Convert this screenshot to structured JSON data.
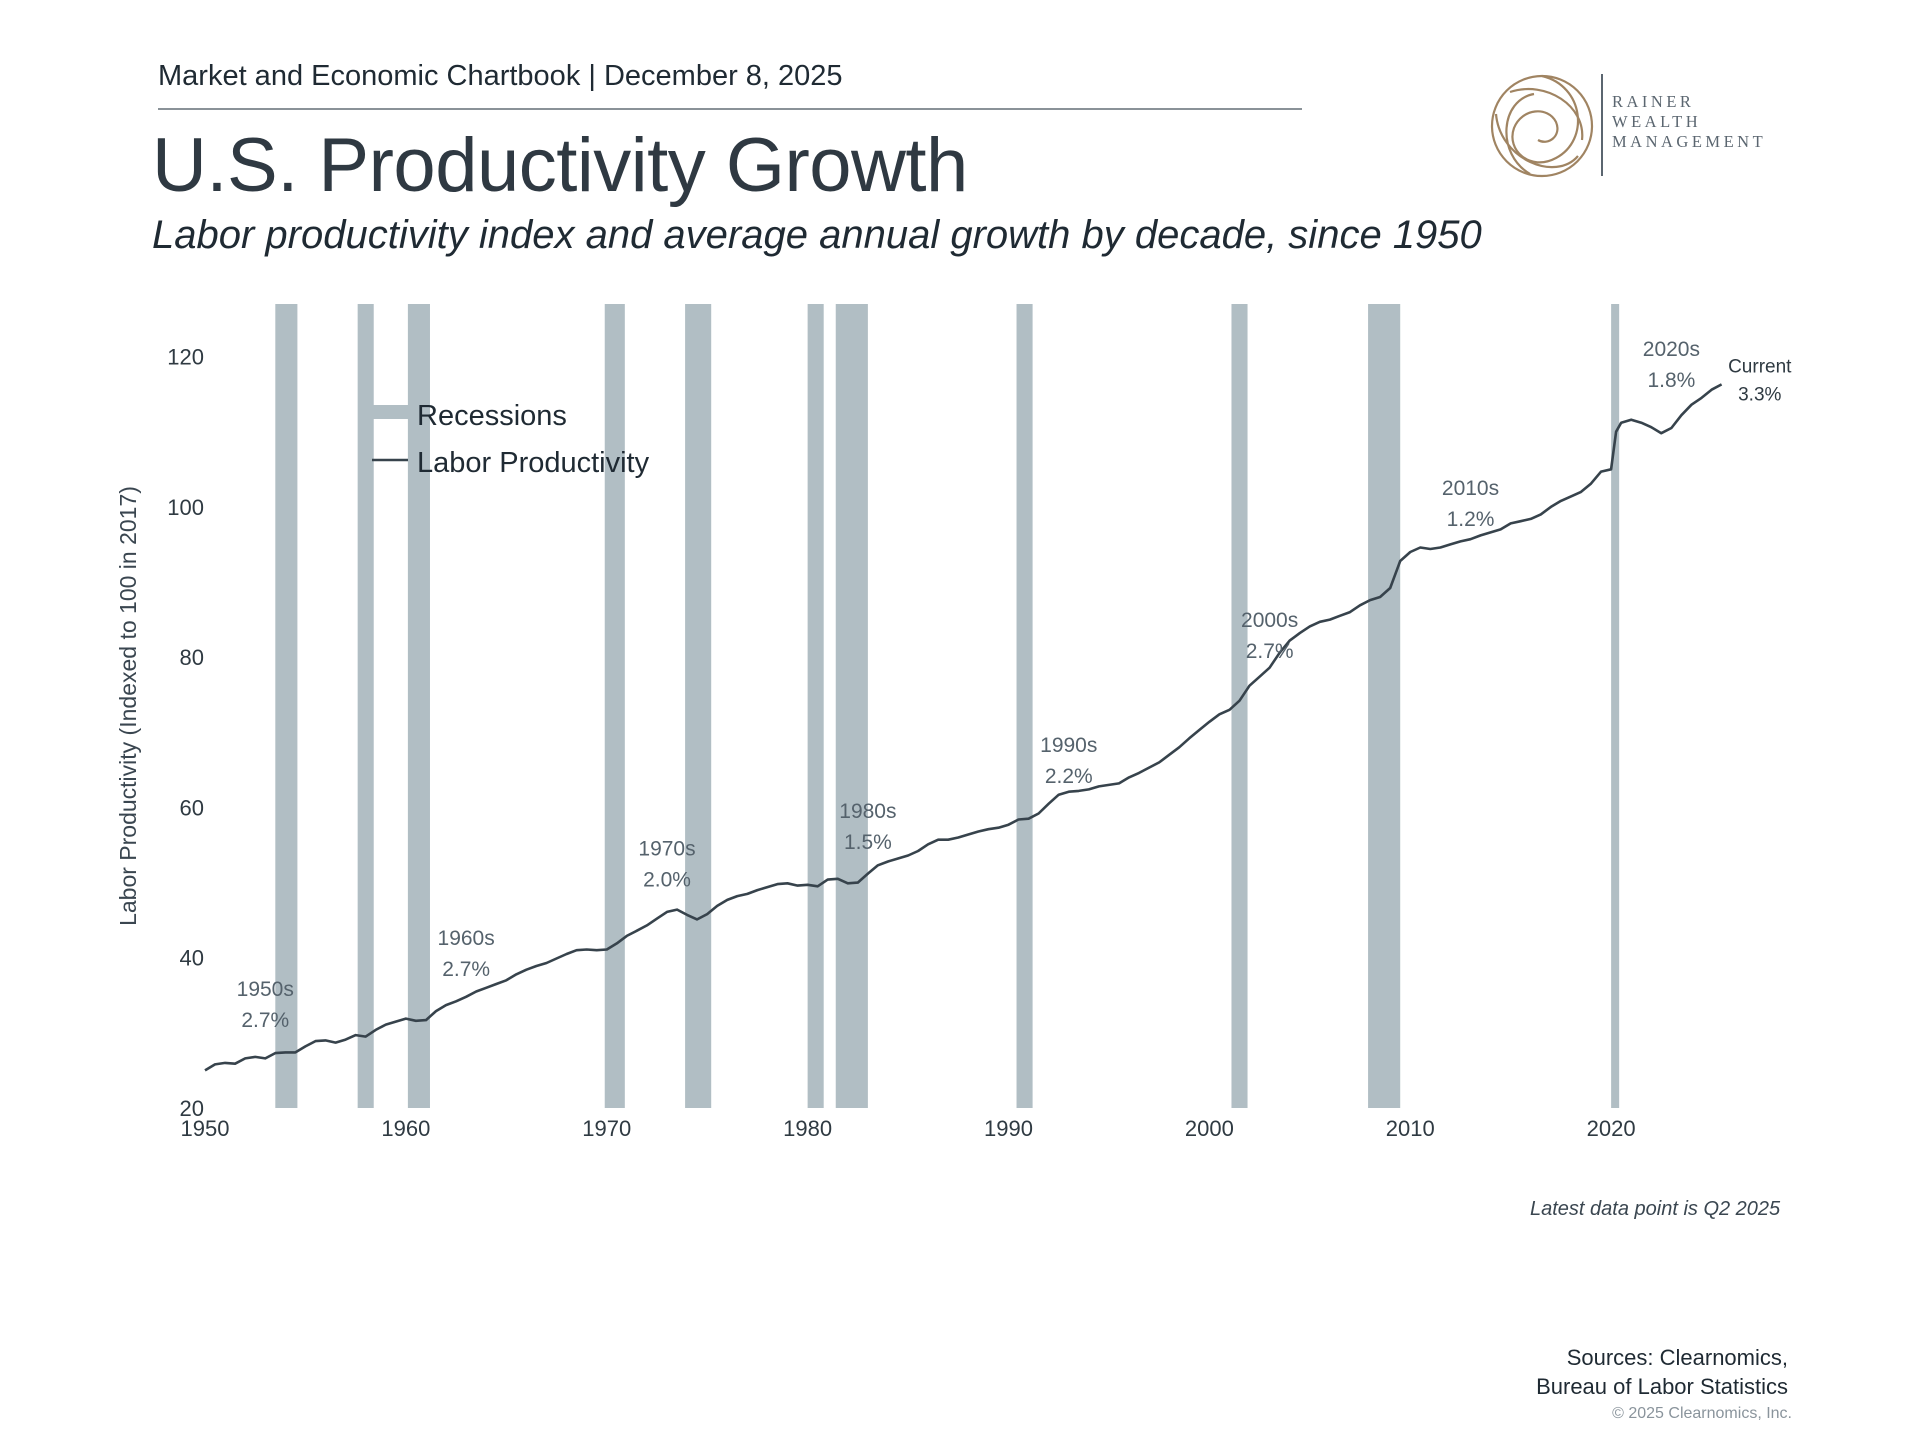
{
  "header": {
    "kicker": "Market and Economic Chartbook | December 8, 2025",
    "title": "U.S. Productivity Growth",
    "subtitle": "Labor productivity index and average annual growth by decade, since 1950"
  },
  "logo": {
    "line1": "RAINER",
    "line2": "WEALTH",
    "line3": "MANAGEMENT",
    "color": "#a08462"
  },
  "colors": {
    "recession": "#b1bec4",
    "line": "#37434c",
    "text": "#2f3a42",
    "annotation": "#55626c"
  },
  "chart_data": {
    "type": "line",
    "title": "U.S. Productivity Growth",
    "xlabel": "",
    "ylabel": "Labor Productivity (Indexed to 100 in 2017)",
    "xlim": [
      1950,
      2030
    ],
    "ylim": [
      20,
      127
    ],
    "xticks": [
      "1950",
      "1960",
      "1970",
      "1980",
      "1990",
      "2000",
      "2010",
      "2020"
    ],
    "yticks": [
      "20",
      "40",
      "60",
      "80",
      "100",
      "120"
    ],
    "grid": false,
    "legend": {
      "position": "top-left",
      "entries": [
        "Recessions",
        "Labor Productivity"
      ]
    },
    "recessions": [
      [
        1953.5,
        1954.6
      ],
      [
        1957.6,
        1958.4
      ],
      [
        1960.1,
        1961.2
      ],
      [
        1969.9,
        1970.9
      ],
      [
        1973.9,
        1975.2
      ],
      [
        1980.0,
        1980.8
      ],
      [
        1981.4,
        1983.0
      ],
      [
        1990.4,
        1991.2
      ],
      [
        2001.1,
        2001.9
      ],
      [
        2007.9,
        2009.5
      ],
      [
        2020.0,
        2020.4
      ]
    ],
    "series": [
      {
        "name": "Labor Productivity",
        "points": [
          [
            1950.0,
            25.0
          ],
          [
            1950.5,
            25.8
          ],
          [
            1951.0,
            26.0
          ],
          [
            1951.5,
            25.9
          ],
          [
            1952.0,
            26.6
          ],
          [
            1952.5,
            26.8
          ],
          [
            1953.0,
            26.6
          ],
          [
            1953.5,
            27.3
          ],
          [
            1954.0,
            27.4
          ],
          [
            1954.5,
            27.4
          ],
          [
            1955.0,
            28.2
          ],
          [
            1955.5,
            28.9
          ],
          [
            1956.0,
            29.0
          ],
          [
            1956.5,
            28.7
          ],
          [
            1957.0,
            29.1
          ],
          [
            1957.5,
            29.7
          ],
          [
            1958.0,
            29.5
          ],
          [
            1958.5,
            30.4
          ],
          [
            1959.0,
            31.1
          ],
          [
            1959.5,
            31.5
          ],
          [
            1960.0,
            31.9
          ],
          [
            1960.5,
            31.6
          ],
          [
            1961.0,
            31.7
          ],
          [
            1961.5,
            32.9
          ],
          [
            1962.0,
            33.7
          ],
          [
            1962.5,
            34.2
          ],
          [
            1963.0,
            34.8
          ],
          [
            1963.5,
            35.5
          ],
          [
            1964.0,
            36.0
          ],
          [
            1964.5,
            36.5
          ],
          [
            1965.0,
            37.0
          ],
          [
            1965.5,
            37.8
          ],
          [
            1966.0,
            38.4
          ],
          [
            1966.5,
            38.9
          ],
          [
            1967.0,
            39.3
          ],
          [
            1967.5,
            39.9
          ],
          [
            1968.0,
            40.5
          ],
          [
            1968.5,
            41.0
          ],
          [
            1969.0,
            41.1
          ],
          [
            1969.5,
            41.0
          ],
          [
            1970.0,
            41.1
          ],
          [
            1970.5,
            41.9
          ],
          [
            1971.0,
            42.9
          ],
          [
            1971.5,
            43.6
          ],
          [
            1972.0,
            44.3
          ],
          [
            1972.5,
            45.2
          ],
          [
            1973.0,
            46.1
          ],
          [
            1973.5,
            46.4
          ],
          [
            1974.0,
            45.7
          ],
          [
            1974.5,
            45.1
          ],
          [
            1975.0,
            45.8
          ],
          [
            1975.5,
            46.9
          ],
          [
            1976.0,
            47.7
          ],
          [
            1976.5,
            48.2
          ],
          [
            1977.0,
            48.5
          ],
          [
            1977.5,
            49.0
          ],
          [
            1978.0,
            49.4
          ],
          [
            1978.5,
            49.8
          ],
          [
            1979.0,
            49.9
          ],
          [
            1979.5,
            49.6
          ],
          [
            1980.0,
            49.7
          ],
          [
            1980.5,
            49.5
          ],
          [
            1981.0,
            50.4
          ],
          [
            1981.5,
            50.5
          ],
          [
            1982.0,
            49.9
          ],
          [
            1982.5,
            50.0
          ],
          [
            1983.0,
            51.2
          ],
          [
            1983.5,
            52.3
          ],
          [
            1984.0,
            52.8
          ],
          [
            1984.5,
            53.2
          ],
          [
            1985.0,
            53.6
          ],
          [
            1985.5,
            54.2
          ],
          [
            1986.0,
            55.1
          ],
          [
            1986.5,
            55.7
          ],
          [
            1987.0,
            55.7
          ],
          [
            1987.5,
            56.0
          ],
          [
            1988.0,
            56.4
          ],
          [
            1988.5,
            56.8
          ],
          [
            1989.0,
            57.1
          ],
          [
            1989.5,
            57.3
          ],
          [
            1990.0,
            57.7
          ],
          [
            1990.5,
            58.4
          ],
          [
            1991.0,
            58.5
          ],
          [
            1991.5,
            59.2
          ],
          [
            1992.0,
            60.5
          ],
          [
            1992.5,
            61.7
          ],
          [
            1993.0,
            62.1
          ],
          [
            1993.5,
            62.2
          ],
          [
            1994.0,
            62.4
          ],
          [
            1994.5,
            62.8
          ],
          [
            1995.0,
            63.0
          ],
          [
            1995.5,
            63.2
          ],
          [
            1996.0,
            64.0
          ],
          [
            1996.5,
            64.6
          ],
          [
            1997.0,
            65.3
          ],
          [
            1997.5,
            66.0
          ],
          [
            1998.0,
            67.0
          ],
          [
            1998.5,
            68.0
          ],
          [
            1999.0,
            69.2
          ],
          [
            1999.5,
            70.3
          ],
          [
            2000.0,
            71.4
          ],
          [
            2000.5,
            72.4
          ],
          [
            2001.0,
            73.0
          ],
          [
            2001.5,
            74.2
          ],
          [
            2002.0,
            76.2
          ],
          [
            2002.5,
            77.4
          ],
          [
            2003.0,
            78.6
          ],
          [
            2003.5,
            80.6
          ],
          [
            2004.0,
            82.2
          ],
          [
            2004.5,
            83.2
          ],
          [
            2005.0,
            84.1
          ],
          [
            2005.5,
            84.7
          ],
          [
            2006.0,
            85.0
          ],
          [
            2006.5,
            85.5
          ],
          [
            2007.0,
            86.0
          ],
          [
            2007.5,
            86.9
          ],
          [
            2008.0,
            87.6
          ],
          [
            2008.5,
            88.0
          ],
          [
            2009.0,
            89.2
          ],
          [
            2009.5,
            92.8
          ],
          [
            2010.0,
            94.0
          ],
          [
            2010.5,
            94.6
          ],
          [
            2011.0,
            94.4
          ],
          [
            2011.5,
            94.6
          ],
          [
            2012.0,
            95.0
          ],
          [
            2012.5,
            95.4
          ],
          [
            2013.0,
            95.7
          ],
          [
            2013.5,
            96.2
          ],
          [
            2014.0,
            96.6
          ],
          [
            2014.5,
            97.0
          ],
          [
            2015.0,
            97.8
          ],
          [
            2015.5,
            98.1
          ],
          [
            2016.0,
            98.4
          ],
          [
            2016.5,
            99.0
          ],
          [
            2017.0,
            100.0
          ],
          [
            2017.5,
            100.8
          ],
          [
            2018.0,
            101.4
          ],
          [
            2018.5,
            102.0
          ],
          [
            2019.0,
            103.1
          ],
          [
            2019.5,
            104.7
          ],
          [
            2020.0,
            105.0
          ],
          [
            2020.25,
            110.0
          ],
          [
            2020.5,
            111.2
          ],
          [
            2021.0,
            111.6
          ],
          [
            2021.5,
            111.2
          ],
          [
            2022.0,
            110.6
          ],
          [
            2022.5,
            109.8
          ],
          [
            2023.0,
            110.5
          ],
          [
            2023.5,
            112.2
          ],
          [
            2024.0,
            113.6
          ],
          [
            2024.5,
            114.5
          ],
          [
            2025.0,
            115.6
          ],
          [
            2025.5,
            116.3
          ]
        ]
      }
    ],
    "annotations": [
      {
        "label": "1950s",
        "value": "2.7%",
        "x": 1953.0,
        "y": 34.9
      },
      {
        "label": "1960s",
        "value": "2.7%",
        "x": 1963.0,
        "y": 41.7
      },
      {
        "label": "1970s",
        "value": "2.0%",
        "x": 1973.0,
        "y": 53.6
      },
      {
        "label": "1980s",
        "value": "1.5%",
        "x": 1983.0,
        "y": 58.6
      },
      {
        "label": "1990s",
        "value": "2.2%",
        "x": 1993.0,
        "y": 67.4
      },
      {
        "label": "2000s",
        "value": "2.7%",
        "x": 2003.0,
        "y": 84.0
      },
      {
        "label": "2010s",
        "value": "1.2%",
        "x": 2013.0,
        "y": 101.6
      },
      {
        "label": "2020s",
        "value": "1.8%",
        "x": 2023.0,
        "y": 120.1
      },
      {
        "label": "Current",
        "value": "3.3%",
        "x": 2027.4,
        "y": 117.9
      }
    ]
  },
  "footer": {
    "note": "Latest data point is Q2 2025",
    "sources_line1": "Sources: Clearnomics,",
    "sources_line2": "Bureau of Labor Statistics",
    "copyright": "© 2025 Clearnomics, Inc."
  }
}
